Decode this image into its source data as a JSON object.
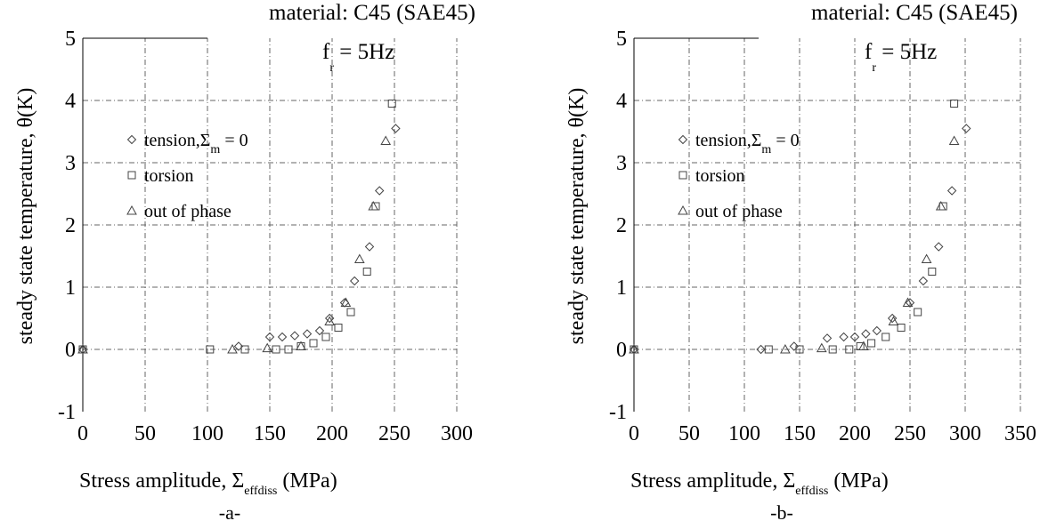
{
  "chart_data": [
    {
      "type": "scatter",
      "panel_label": "-a-",
      "title_line1": "material: C45 (SAE45)",
      "title_line2": {
        "main": "f",
        "sub": "r",
        "rest": " = 5Hz"
      },
      "xlabel": {
        "main": "Stress amplitude, Σ",
        "sub": "effdiss",
        "rest": " (MPa)"
      },
      "ylabel": "steady state temperature, θ(K)",
      "xlim": [
        0,
        300
      ],
      "ylim": [
        -1,
        5
      ],
      "xticks": [
        "0",
        "50",
        "100",
        "150",
        "200",
        "250",
        "300"
      ],
      "yticks": [
        "-1",
        "0",
        "1",
        "2",
        "3",
        "4",
        "5"
      ],
      "grid": true,
      "legend": [
        {
          "marker": "diamond",
          "label": "tension,Σ",
          "sub": "m",
          "rest": " = 0"
        },
        {
          "marker": "square",
          "label": "torsion"
        },
        {
          "marker": "triangle",
          "label": "out of phase"
        }
      ],
      "series": [
        {
          "marker": "diamond",
          "points": [
            [
              0,
              0
            ],
            [
              125,
              0.05
            ],
            [
              150,
              0.2
            ],
            [
              160,
              0.2
            ],
            [
              170,
              0.22
            ],
            [
              180,
              0.25
            ],
            [
              190,
              0.3
            ],
            [
              198,
              0.5
            ],
            [
              210,
              0.75
            ],
            [
              218,
              1.1
            ],
            [
              230,
              1.65
            ],
            [
              238,
              2.55
            ],
            [
              251,
              3.55
            ]
          ]
        },
        {
          "marker": "square",
          "points": [
            [
              0,
              0
            ],
            [
              102,
              0
            ],
            [
              130,
              0
            ],
            [
              155,
              0
            ],
            [
              165,
              0
            ],
            [
              175,
              0.05
            ],
            [
              185,
              0.1
            ],
            [
              195,
              0.2
            ],
            [
              205,
              0.35
            ],
            [
              215,
              0.6
            ],
            [
              228,
              1.25
            ],
            [
              235,
              2.3
            ],
            [
              248,
              3.95
            ]
          ]
        },
        {
          "marker": "triangle",
          "points": [
            [
              0,
              0
            ],
            [
              120,
              0
            ],
            [
              148,
              0.02
            ],
            [
              175,
              0.05
            ],
            [
              198,
              0.45
            ],
            [
              211,
              0.75
            ],
            [
              222,
              1.45
            ],
            [
              233,
              2.3
            ],
            [
              243,
              3.35
            ]
          ]
        }
      ]
    },
    {
      "type": "scatter",
      "panel_label": "-b-",
      "title_line1": "material: C45 (SAE45)",
      "title_line2": {
        "main": "f",
        "sub": "r",
        "rest": " = 5Hz"
      },
      "xlabel": {
        "main": "Stress amplitude, Σ",
        "sub": "effdiss",
        "rest": " (MPa)"
      },
      "ylabel": "steady state temperature, θ(K)",
      "xlim": [
        0,
        350
      ],
      "ylim": [
        -1,
        5
      ],
      "xticks": [
        "0",
        "50",
        "100",
        "150",
        "200",
        "250",
        "300",
        "350"
      ],
      "yticks": [
        "-1",
        "0",
        "1",
        "2",
        "3",
        "4",
        "5"
      ],
      "grid": true,
      "legend": [
        {
          "marker": "diamond",
          "label": "tension,Σ",
          "sub": "m",
          "rest": " = 0"
        },
        {
          "marker": "square",
          "label": "torsion"
        },
        {
          "marker": "triangle",
          "label": "out of phase"
        }
      ],
      "series": [
        {
          "marker": "diamond",
          "points": [
            [
              0,
              0
            ],
            [
              115,
              0
            ],
            [
              145,
              0.05
            ],
            [
              175,
              0.18
            ],
            [
              190,
              0.2
            ],
            [
              200,
              0.2
            ],
            [
              210,
              0.25
            ],
            [
              220,
              0.3
            ],
            [
              234,
              0.5
            ],
            [
              250,
              0.75
            ],
            [
              262,
              1.1
            ],
            [
              276,
              1.65
            ],
            [
              288,
              2.55
            ],
            [
              301,
              3.55
            ]
          ]
        },
        {
          "marker": "square",
          "points": [
            [
              0,
              0
            ],
            [
              122,
              0
            ],
            [
              150,
              0
            ],
            [
              180,
              0
            ],
            [
              195,
              0
            ],
            [
              205,
              0.05
            ],
            [
              215,
              0.1
            ],
            [
              228,
              0.2
            ],
            [
              242,
              0.35
            ],
            [
              257,
              0.6
            ],
            [
              270,
              1.25
            ],
            [
              280,
              2.3
            ],
            [
              290,
              3.95
            ]
          ]
        },
        {
          "marker": "triangle",
          "points": [
            [
              0,
              0
            ],
            [
              137,
              0
            ],
            [
              170,
              0.02
            ],
            [
              208,
              0.05
            ],
            [
              235,
              0.45
            ],
            [
              248,
              0.75
            ],
            [
              265,
              1.45
            ],
            [
              278,
              2.3
            ],
            [
              290,
              3.35
            ]
          ]
        }
      ]
    }
  ]
}
